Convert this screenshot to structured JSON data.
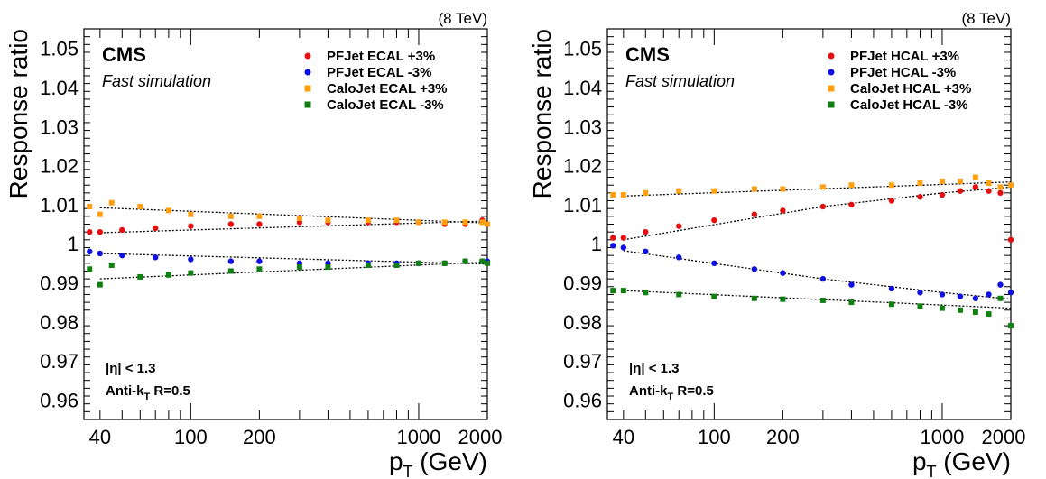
{
  "chart_data": [
    {
      "type": "scatter",
      "energy_label": "(8 TeV)",
      "experiment": "CMS",
      "subtitle": "Fast simulation",
      "ylabel": "Response ratio",
      "xlabel": "p_T (GeV)",
      "x_scale": "log",
      "xlim": [
        34,
        2000
      ],
      "ylim": [
        0.955,
        1.055
      ],
      "x_ticks": [
        40,
        100,
        200,
        1000,
        2000
      ],
      "y_ticks": [
        0.96,
        0.97,
        0.98,
        0.99,
        1,
        1.01,
        1.02,
        1.03,
        1.04,
        1.05
      ],
      "y_tick_labels": [
        "0.96",
        "0.97",
        "0.98",
        "0.99",
        "1",
        "1.01",
        "1.02",
        "1.03",
        "1.04",
        "1.05"
      ],
      "annotations": [
        "|η| < 1.3",
        "Anti-k_T R=0.5"
      ],
      "legend_position": "top-right",
      "series": [
        {
          "name": "PFJet ECAL +3%",
          "color": "#e41010",
          "marker": "circle",
          "x": [
            36,
            40,
            50,
            70,
            100,
            150,
            200,
            300,
            400,
            600,
            800,
            1000,
            1300,
            1600,
            1900,
            2000
          ],
          "y": [
            1.003,
            1.003,
            1.0035,
            1.004,
            1.0045,
            1.005,
            1.005,
            1.0055,
            1.0055,
            1.0055,
            1.0055,
            1.0055,
            1.005,
            1.005,
            1.006,
            1.005
          ]
        },
        {
          "name": "PFJet ECAL -3%",
          "color": "#1010e0",
          "marker": "circle",
          "x": [
            36,
            40,
            50,
            70,
            100,
            150,
            200,
            300,
            400,
            600,
            800,
            1000,
            1300,
            1600,
            1900,
            2000
          ],
          "y": [
            0.998,
            0.9975,
            0.997,
            0.9965,
            0.996,
            0.9955,
            0.9955,
            0.995,
            0.995,
            0.995,
            0.995,
            0.995,
            0.995,
            0.9955,
            0.9955,
            0.9955
          ]
        },
        {
          "name": "CaloJet ECAL +3%",
          "color": "#ffa010",
          "marker": "square",
          "x": [
            36,
            40,
            45,
            60,
            80,
            100,
            150,
            200,
            300,
            400,
            600,
            800,
            1000,
            1300,
            1600,
            1900,
            2000
          ],
          "y": [
            1.0095,
            1.0075,
            1.0105,
            1.0095,
            1.0085,
            1.0075,
            1.007,
            1.007,
            1.0065,
            1.006,
            1.006,
            1.006,
            1.0055,
            1.0055,
            1.0055,
            1.0055,
            1.005
          ]
        },
        {
          "name": "CaloJet ECAL -3%",
          "color": "#108010",
          "marker": "square",
          "x": [
            36,
            40,
            45,
            60,
            80,
            100,
            150,
            200,
            300,
            400,
            600,
            800,
            1000,
            1300,
            1600,
            1900,
            2000
          ],
          "y": [
            0.9935,
            0.9895,
            0.9945,
            0.9915,
            0.992,
            0.9925,
            0.993,
            0.9935,
            0.994,
            0.994,
            0.9945,
            0.9945,
            0.995,
            0.995,
            0.9955,
            0.9955,
            0.995
          ]
        }
      ],
      "fit_curves": [
        {
          "x": [
            40,
            2000
          ],
          "y": [
            1.0028,
            1.0058
          ]
        },
        {
          "x": [
            40,
            2000
          ],
          "y": [
            0.9975,
            0.9948
          ]
        },
        {
          "x": [
            40,
            2000
          ],
          "y": [
            1.0092,
            1.0053
          ]
        },
        {
          "x": [
            40,
            2000
          ],
          "y": [
            0.991,
            0.9953
          ]
        }
      ]
    },
    {
      "type": "scatter",
      "energy_label": "(8 TeV)",
      "experiment": "CMS",
      "subtitle": "Fast simulation",
      "ylabel": "Response ratio",
      "xlabel": "p_T (GeV)",
      "x_scale": "log",
      "xlim": [
        34,
        2000
      ],
      "ylim": [
        0.955,
        1.055
      ],
      "x_ticks": [
        40,
        100,
        200,
        1000,
        2000
      ],
      "y_ticks": [
        0.96,
        0.97,
        0.98,
        0.99,
        1,
        1.01,
        1.02,
        1.03,
        1.04,
        1.05
      ],
      "y_tick_labels": [
        "0.96",
        "0.97",
        "0.98",
        "0.99",
        "1",
        "1.01",
        "1.02",
        "1.03",
        "1.04",
        "1.05"
      ],
      "annotations": [
        "|η| < 1.3",
        "Anti-k_T R=0.5"
      ],
      "legend_position": "top-right",
      "series": [
        {
          "name": "PFJet HCAL +3%",
          "color": "#e41010",
          "marker": "circle",
          "x": [
            36,
            40,
            50,
            70,
            100,
            150,
            200,
            300,
            400,
            600,
            800,
            1000,
            1200,
            1400,
            1600,
            1800,
            2000
          ],
          "y": [
            1.0015,
            1.0015,
            1.003,
            1.0045,
            1.006,
            1.0075,
            1.0085,
            1.0095,
            1.01,
            1.011,
            1.012,
            1.0125,
            1.0135,
            1.0145,
            1.0135,
            1.013,
            1.001
          ]
        },
        {
          "name": "PFJet HCAL -3%",
          "color": "#1010e0",
          "marker": "circle",
          "x": [
            36,
            40,
            50,
            70,
            100,
            150,
            200,
            300,
            400,
            600,
            800,
            1000,
            1200,
            1400,
            1600,
            1800,
            2000
          ],
          "y": [
            0.9995,
            0.999,
            0.998,
            0.9965,
            0.995,
            0.9935,
            0.9925,
            0.991,
            0.9895,
            0.9885,
            0.9875,
            0.987,
            0.9865,
            0.986,
            0.987,
            0.9895,
            0.9875
          ]
        },
        {
          "name": "CaloJet HCAL +3%",
          "color": "#ffa010",
          "marker": "square",
          "x": [
            36,
            40,
            50,
            70,
            100,
            150,
            200,
            300,
            400,
            600,
            800,
            1000,
            1200,
            1400,
            1600,
            1800,
            2000
          ],
          "y": [
            1.0125,
            1.0125,
            1.013,
            1.0135,
            1.0135,
            1.014,
            1.014,
            1.0145,
            1.015,
            1.015,
            1.0155,
            1.016,
            1.016,
            1.017,
            1.0155,
            1.0145,
            1.015
          ]
        },
        {
          "name": "CaloJet HCAL -3%",
          "color": "#108010",
          "marker": "square",
          "x": [
            36,
            40,
            50,
            70,
            100,
            150,
            200,
            300,
            400,
            600,
            800,
            1000,
            1200,
            1400,
            1600,
            1800,
            2000
          ],
          "y": [
            0.988,
            0.988,
            0.9875,
            0.987,
            0.9865,
            0.986,
            0.9858,
            0.9855,
            0.985,
            0.9845,
            0.984,
            0.9835,
            0.983,
            0.9825,
            0.982,
            0.986,
            0.979
          ]
        }
      ],
      "fit_curves": [
        {
          "x": [
            40,
            300,
            1000,
            2000
          ],
          "y": [
            1.001,
            1.0095,
            1.013,
            1.0145
          ]
        },
        {
          "x": [
            40,
            300,
            1000,
            2000
          ],
          "y": [
            0.9982,
            0.991,
            0.9875,
            0.9858
          ]
        },
        {
          "x": [
            40,
            2000
          ],
          "y": [
            1.0122,
            1.0158
          ]
        },
        {
          "x": [
            40,
            2000
          ],
          "y": [
            0.988,
            0.9835
          ]
        }
      ]
    }
  ]
}
